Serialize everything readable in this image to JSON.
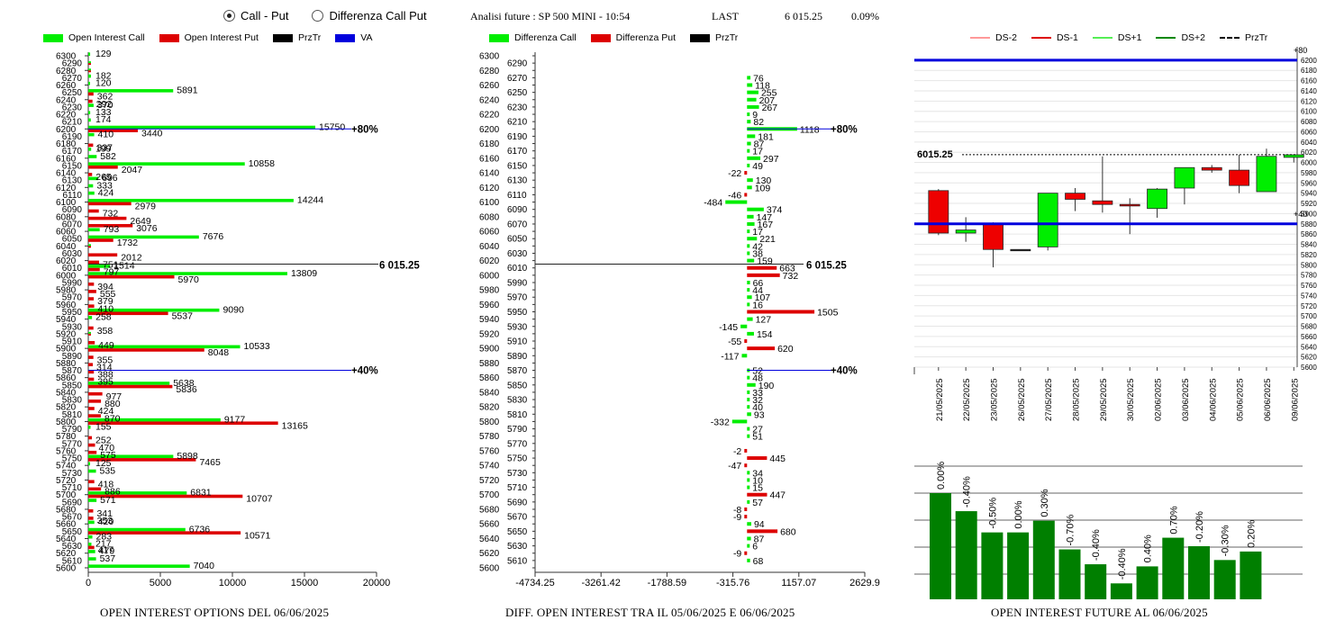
{
  "header": {
    "radio_call_put": "Call - Put",
    "radio_diff": "Differenza Call Put",
    "title": "Analisi future : SP 500 MINI - 10:54",
    "last_label": "LAST",
    "last_value": "6 015.25",
    "last_pct": "0.09%"
  },
  "colors": {
    "call": "#00ee00",
    "put": "#dd0000",
    "prztr": "#000000",
    "va": "#0000dd",
    "future_bar": "#007f00"
  },
  "legend1": [
    "Open Interest Call",
    "Open Interest Put",
    "PrzTr",
    "VA"
  ],
  "legend2": [
    "Differenza Call",
    "Differenza Put",
    "PrzTr"
  ],
  "legend3": [
    "DS-2",
    "DS-1",
    "DS+1",
    "DS+2",
    "PrzTr"
  ],
  "footers": {
    "left": "OPEN INTEREST OPTIONS DEL 06/06/2025",
    "mid": "DIFF. OPEN INTEREST TRA IL 05/06/2025 E 06/06/2025",
    "right": "OPEN INTEREST FUTURE AL 06/06/2025"
  },
  "chart_data": [
    {
      "type": "bar",
      "orientation": "horizontal",
      "strikes": [
        6300,
        6290,
        6280,
        6270,
        6260,
        6250,
        6240,
        6230,
        6220,
        6210,
        6200,
        6190,
        6180,
        6170,
        6160,
        6150,
        6140,
        6130,
        6120,
        6110,
        6100,
        6090,
        6080,
        6070,
        6060,
        6050,
        6040,
        6030,
        6020,
        6010,
        6000,
        5990,
        5980,
        5970,
        5960,
        5950,
        5940,
        5930,
        5920,
        5910,
        5900,
        5890,
        5880,
        5870,
        5860,
        5850,
        5840,
        5830,
        5820,
        5810,
        5800,
        5790,
        5780,
        5770,
        5760,
        5750,
        5740,
        5730,
        5720,
        5710,
        5700,
        5690,
        5680,
        5670,
        5660,
        5650,
        5640,
        5630,
        5620,
        5610,
        5600
      ],
      "tick_labels": [
        "6300",
        "6290",
        "6280",
        "6270",
        "6260",
        "6250",
        "6240",
        "6230",
        "6220",
        "6210",
        "6200",
        "6190",
        "6180",
        "6170",
        "6160",
        "6150",
        "6140",
        "6130",
        "6120",
        "6110",
        "6100",
        "6090",
        "6080",
        "6070",
        "6060",
        "6050",
        "6040",
        "6030",
        "6020",
        "6010",
        "6000",
        "5990",
        "5980",
        "5970",
        "5960",
        "5950",
        "5940",
        "5930",
        "5920",
        "5910",
        "5900",
        "5890",
        "5880",
        "5870",
        "5860",
        "5850",
        "5840",
        "5830",
        "5820",
        "5810",
        "5800",
        "5790",
        "5780",
        "5770",
        "5760",
        "5750",
        "5740",
        "5730",
        "5720",
        "5710",
        "5700",
        "5690",
        "5680",
        "5670",
        "5660",
        "5650",
        "5640",
        "5630",
        "5620",
        "5610",
        "5600"
      ],
      "x_ticks": [
        "0",
        "5000",
        "10000",
        "15000",
        "20000"
      ],
      "xlim": [
        0,
        20000
      ],
      "series": [
        {
          "name": "Open Interest Call",
          "labeled": [
            [
              6300,
              129
            ],
            [
              6270,
              182
            ],
            [
              6260,
              120
            ],
            [
              6250,
              5891
            ],
            [
              6230,
              370
            ],
            [
              6220,
              133
            ],
            [
              6210,
              174
            ],
            [
              6200,
              15750
            ],
            [
              6190,
              410
            ],
            [
              6170,
              199
            ],
            [
              6160,
              582
            ],
            [
              6150,
              10858
            ],
            [
              6130,
              696
            ],
            [
              6120,
              333
            ],
            [
              6110,
              424
            ],
            [
              6100,
              14244
            ],
            [
              6060,
              793
            ],
            [
              6050,
              7676
            ],
            [
              6010,
              1514
            ],
            [
              6000,
              13809
            ],
            [
              5950,
              9090
            ],
            [
              5940,
              258
            ],
            [
              5900,
              10533
            ],
            [
              5850,
              5638
            ],
            [
              5800,
              9177
            ],
            [
              5790,
              155
            ],
            [
              5750,
              5898
            ],
            [
              5740,
              125
            ],
            [
              5730,
              535
            ],
            [
              5700,
              6831
            ],
            [
              5690,
              571
            ],
            [
              5660,
              420
            ],
            [
              5650,
              6736
            ],
            [
              5640,
              283
            ],
            [
              5630,
              217
            ],
            [
              5620,
              479
            ],
            [
              5610,
              537
            ],
            [
              5600,
              7040
            ]
          ]
        },
        {
          "name": "Open Interest Put",
          "labeled": [
            [
              6250,
              362
            ],
            [
              6240,
              292
            ],
            [
              6200,
              3440
            ],
            [
              6180,
              337
            ],
            [
              6150,
              2047
            ],
            [
              6140,
              265
            ],
            [
              6100,
              2979
            ],
            [
              6090,
              732
            ],
            [
              6080,
              2649
            ],
            [
              6070,
              3076
            ],
            [
              6050,
              1732
            ],
            [
              6030,
              2012
            ],
            [
              6020,
              751
            ],
            [
              6010,
              797
            ],
            [
              6000,
              5970
            ],
            [
              5990,
              394
            ],
            [
              5980,
              555
            ],
            [
              5970,
              379
            ],
            [
              5960,
              410
            ],
            [
              5950,
              5537
            ],
            [
              5930,
              358
            ],
            [
              5910,
              449
            ],
            [
              5900,
              8048
            ],
            [
              5890,
              355
            ],
            [
              5880,
              314
            ],
            [
              5870,
              388
            ],
            [
              5860,
              395
            ],
            [
              5850,
              5836
            ],
            [
              5840,
              977
            ],
            [
              5830,
              880
            ],
            [
              5820,
              424
            ],
            [
              5810,
              870
            ],
            [
              5800,
              13165
            ],
            [
              5780,
              252
            ],
            [
              5770,
              470
            ],
            [
              5760,
              575
            ],
            [
              5750,
              7465
            ],
            [
              5720,
              418
            ],
            [
              5710,
              886
            ],
            [
              5700,
              10707
            ],
            [
              5680,
              341
            ],
            [
              5670,
              353
            ],
            [
              5650,
              10571
            ],
            [
              5630,
              417
            ]
          ]
        }
      ],
      "price_marker": {
        "value": 6015.25,
        "label": "6 015.25"
      },
      "markers": [
        {
          "label": "+80%",
          "at": 6200
        },
        {
          "label": "+40%",
          "at": 5870
        }
      ],
      "xlabel": "OPEN INTEREST OPTIONS DEL 06/06/2025"
    },
    {
      "type": "bar",
      "orientation": "horizontal",
      "xlim": [
        -4734.25,
        2629.9
      ],
      "x_ticks": [
        "-4734.25",
        "-3261.42",
        "-1788.59",
        "-315.76",
        "1157.07",
        "2629.9"
      ],
      "values": [
        [
          6270,
          76
        ],
        [
          6260,
          118
        ],
        [
          6250,
          255
        ],
        [
          6240,
          207
        ],
        [
          6230,
          267
        ],
        [
          6220,
          9
        ],
        [
          6210,
          82
        ],
        [
          6200,
          1118
        ],
        [
          6190,
          181
        ],
        [
          6180,
          87
        ],
        [
          6170,
          17
        ],
        [
          6160,
          297
        ],
        [
          6150,
          49
        ],
        [
          6140,
          -22
        ],
        [
          6130,
          130
        ],
        [
          6120,
          109
        ],
        [
          6110,
          -46
        ],
        [
          6100,
          -484
        ],
        [
          6090,
          374
        ],
        [
          6080,
          147
        ],
        [
          6070,
          167
        ],
        [
          6060,
          17
        ],
        [
          6050,
          221
        ],
        [
          6040,
          42
        ],
        [
          6030,
          38
        ],
        [
          6020,
          159
        ],
        [
          6010,
          663
        ],
        [
          6000,
          732
        ],
        [
          5990,
          66
        ],
        [
          5980,
          44
        ],
        [
          5970,
          107
        ],
        [
          5960,
          16
        ],
        [
          5950,
          1505
        ],
        [
          5940,
          127
        ],
        [
          5930,
          -145
        ],
        [
          5920,
          154
        ],
        [
          5910,
          -55
        ],
        [
          5900,
          620
        ],
        [
          5890,
          -117
        ],
        [
          5870,
          52
        ],
        [
          5860,
          48
        ],
        [
          5850,
          190
        ],
        [
          5840,
          33
        ],
        [
          5830,
          32
        ],
        [
          5820,
          40
        ],
        [
          5810,
          93
        ],
        [
          5800,
          -332
        ],
        [
          5790,
          27
        ],
        [
          5780,
          51
        ],
        [
          5760,
          -2
        ],
        [
          5750,
          445
        ],
        [
          5740,
          -47
        ],
        [
          5730,
          34
        ],
        [
          5720,
          10
        ],
        [
          5710,
          15
        ],
        [
          5700,
          447
        ],
        [
          5690,
          57
        ],
        [
          5680,
          -8
        ],
        [
          5670,
          -9
        ],
        [
          5660,
          94
        ],
        [
          5650,
          680
        ],
        [
          5640,
          87
        ],
        [
          5630,
          6
        ],
        [
          5620,
          -9
        ],
        [
          5610,
          68
        ]
      ],
      "price_marker": {
        "value": 6015.25,
        "label": "6 015.25"
      },
      "markers": [
        {
          "label": "+80%",
          "at": 6200
        },
        {
          "label": "+40%",
          "at": 5870
        }
      ],
      "xlabel": "DIFF. OPEN INTEREST TRA IL 05/06/2025 E 06/06/2025"
    },
    {
      "type": "candlestick",
      "categories": [
        "21/05/2025",
        "22/05/2025",
        "23/05/2025",
        "26/05/2025",
        "27/05/2025",
        "28/05/2025",
        "29/05/2025",
        "30/05/2025",
        "02/06/2025",
        "03/06/2025",
        "04/06/2025",
        "05/06/2025",
        "06/06/2025",
        "09/06/2025"
      ],
      "ohlc": [
        [
          5945,
          5948,
          5858,
          5862
        ],
        [
          5862,
          5893,
          5845,
          5868
        ],
        [
          5880,
          5883,
          5795,
          5830
        ],
        [
          5830,
          5830,
          5830,
          5830
        ],
        [
          5835,
          5940,
          5828,
          5940
        ],
        [
          5940,
          5950,
          5905,
          5928
        ],
        [
          5925,
          6012,
          5902,
          5918
        ],
        [
          5918,
          5930,
          5860,
          5915
        ],
        [
          5910,
          5950,
          5892,
          5948
        ],
        [
          5950,
          5990,
          5918,
          5990
        ],
        [
          5990,
          5995,
          5980,
          5985
        ],
        [
          5985,
          6015,
          5940,
          5955
        ],
        [
          5943,
          6027,
          5943,
          6012
        ],
        [
          6010,
          6015,
          6000,
          6015
        ]
      ],
      "y_ticks": [
        6200,
        6180,
        6160,
        6140,
        6120,
        6100,
        6080,
        6060,
        6040,
        6020,
        6000,
        5980,
        5960,
        5940,
        5920,
        5900,
        5880,
        5860,
        5840,
        5820,
        5800,
        5780,
        5760,
        5740,
        5720,
        5700,
        5680,
        5660,
        5640,
        5620,
        5600
      ],
      "ylim": [
        5600,
        6205
      ],
      "price_marker": {
        "value": 6015.25,
        "label": "6015.25"
      },
      "markers": [
        {
          "label": "+80",
          "at": 6200
        },
        {
          "label": "+40",
          "at": 5880
        }
      ]
    },
    {
      "type": "bar",
      "values": [
        0.0,
        -0.4,
        -0.5,
        0.0,
        0.3,
        -0.7,
        -0.4,
        -0.4,
        0.4,
        0.7,
        -0.2,
        -0.3,
        0.2
      ],
      "labels": [
        "0.00%",
        "-0.40%",
        "-0.50%",
        "0.00%",
        "0.30%",
        "-0.70%",
        "-0.40%",
        "-0.40%",
        "0.40%",
        "0.70%",
        "-0.20%",
        "-0.30%",
        "0.20%"
      ],
      "relative_heights": [
        1.0,
        0.83,
        0.63,
        0.63,
        0.74,
        0.47,
        0.33,
        0.15,
        0.31,
        0.58,
        0.5,
        0.37,
        0.45
      ],
      "xlabel": "OPEN INTEREST FUTURE AL 06/06/2025"
    }
  ]
}
